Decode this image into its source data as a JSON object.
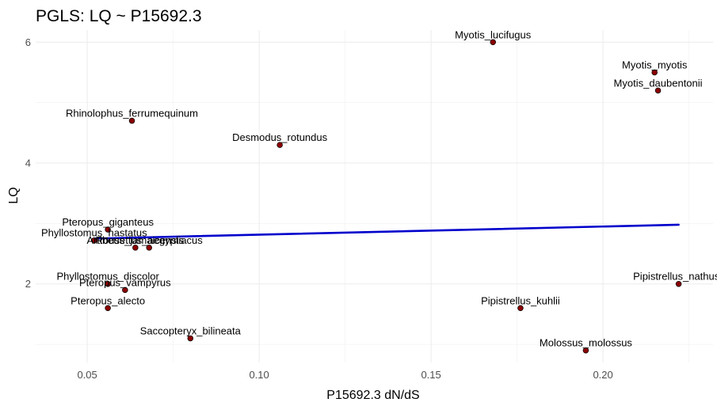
{
  "chart_data": {
    "type": "scatter",
    "title": "PGLS: LQ ~ P15692.3",
    "xlabel": "P15692.3 dN/dS",
    "ylabel": "LQ",
    "xlim": [
      0.035,
      0.232
    ],
    "ylim": [
      0.7,
      6.2
    ],
    "xticks": [
      0.05,
      0.1,
      0.15,
      0.2
    ],
    "xtick_labels": [
      "0.05",
      "0.10",
      "0.15",
      "0.20"
    ],
    "yticks": [
      2,
      4,
      6
    ],
    "ytick_labels": [
      "2",
      "4",
      "6"
    ],
    "grid": true,
    "point_color": "#8b0000",
    "line_color": "#0000cc",
    "points": [
      {
        "label": "Myotis_lucifugus",
        "x": 0.168,
        "y": 6.0
      },
      {
        "label": "Myotis_myotis",
        "x": 0.215,
        "y": 5.5
      },
      {
        "label": "Myotis_daubentonii",
        "x": 0.216,
        "y": 5.2
      },
      {
        "label": "Rhinolophus_ferrumequinum",
        "x": 0.063,
        "y": 4.7
      },
      {
        "label": "Desmodus_rotundus",
        "x": 0.106,
        "y": 4.3
      },
      {
        "label": "Pteropus_giganteus",
        "x": 0.056,
        "y": 2.9
      },
      {
        "label": "Phyllostomus_hastatus",
        "x": 0.052,
        "y": 2.72
      },
      {
        "label": "Artibeus_jamaicensis",
        "x": 0.064,
        "y": 2.6
      },
      {
        "label": "Rousettus_aegyptiacus",
        "x": 0.068,
        "y": 2.6
      },
      {
        "label": "Phyllostomus_discolor",
        "x": 0.056,
        "y": 2.0
      },
      {
        "label": "Pteropus_vampyrus",
        "x": 0.061,
        "y": 1.9
      },
      {
        "label": "Pteropus_alecto",
        "x": 0.056,
        "y": 1.6
      },
      {
        "label": "Saccopteryx_bilineata",
        "x": 0.08,
        "y": 1.1
      },
      {
        "label": "Pipistrellus_kuhlii",
        "x": 0.176,
        "y": 1.6
      },
      {
        "label": "Pipistrellus_nathusii",
        "x": 0.222,
        "y": 2.0
      },
      {
        "label": "Molossus_molossus",
        "x": 0.195,
        "y": 0.9
      }
    ],
    "regression_line": {
      "x": [
        0.052,
        0.222
      ],
      "y": [
        2.75,
        2.98
      ]
    }
  }
}
